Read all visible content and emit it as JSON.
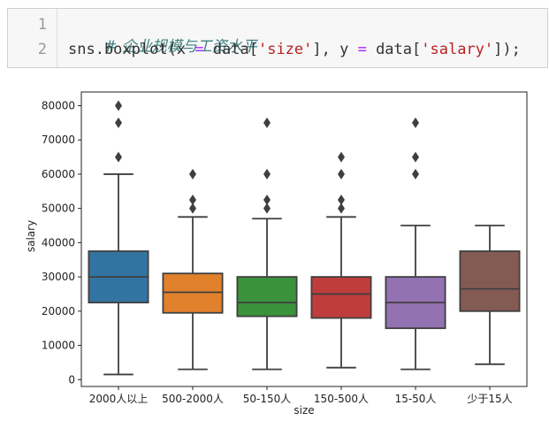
{
  "code_cell": {
    "line_numbers": [
      "1",
      "2"
    ],
    "comment": "# 企业规模与工资水平",
    "line2": {
      "fn": "sns.boxplot(x ",
      "eq1": "=",
      "mid1": " data[",
      "str1": "'size'",
      "mid2": "], y ",
      "eq2": "=",
      "mid3": " data[",
      "str2": "'salary'",
      "end": "]);"
    }
  },
  "chart_data": {
    "type": "boxplot",
    "xlabel": "size",
    "ylabel": "salary",
    "ylim": [
      -2000,
      84000
    ],
    "yticks": [
      0,
      10000,
      20000,
      30000,
      40000,
      50000,
      60000,
      70000,
      80000
    ],
    "categories": [
      "2000人以上",
      "500-2000人",
      "50-150人",
      "150-500人",
      "15-50人",
      "少于15人"
    ],
    "colors": [
      "#3274a1",
      "#e1812c",
      "#3a923a",
      "#c03d3e",
      "#9372b2",
      "#845b53"
    ],
    "boxes": [
      {
        "category": "2000人以上",
        "q1": 22500,
        "median": 30000,
        "q3": 37500,
        "whisker_low": 1500,
        "whisker_high": 60000,
        "outliers": [
          65000,
          75000,
          80000
        ]
      },
      {
        "category": "500-2000人",
        "q1": 19500,
        "median": 25500,
        "q3": 31000,
        "whisker_low": 3000,
        "whisker_high": 47500,
        "outliers": [
          50000,
          52500,
          60000
        ]
      },
      {
        "category": "50-150人",
        "q1": 18500,
        "median": 22500,
        "q3": 30000,
        "whisker_low": 3000,
        "whisker_high": 47000,
        "outliers": [
          50000,
          52500,
          60000,
          75000
        ]
      },
      {
        "category": "150-500人",
        "q1": 18000,
        "median": 25000,
        "q3": 30000,
        "whisker_low": 3500,
        "whisker_high": 47500,
        "outliers": [
          50000,
          52500,
          60000,
          65000
        ]
      },
      {
        "category": "15-50人",
        "q1": 15000,
        "median": 22500,
        "q3": 30000,
        "whisker_low": 3000,
        "whisker_high": 45000,
        "outliers": [
          60000,
          65000,
          75000
        ]
      },
      {
        "category": "少于15人",
        "q1": 20000,
        "median": 26500,
        "q3": 37500,
        "whisker_low": 4500,
        "whisker_high": 45000,
        "outliers": []
      }
    ]
  }
}
